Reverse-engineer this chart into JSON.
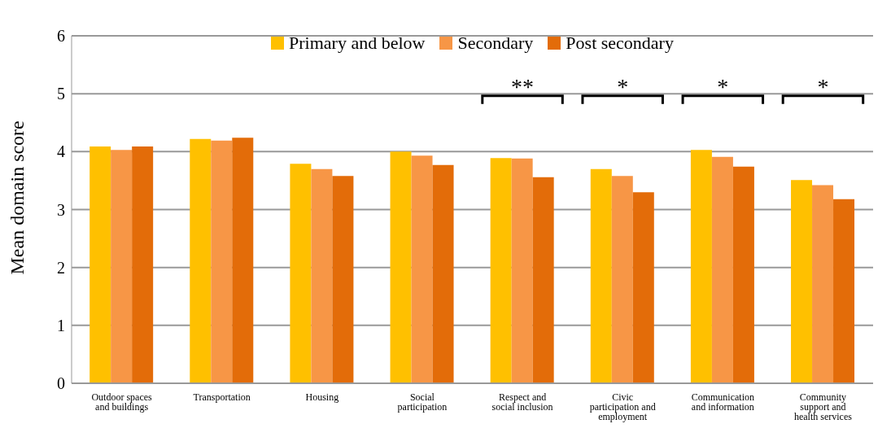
{
  "chart_data": {
    "type": "bar",
    "ylabel": "Mean domain score",
    "categories": [
      "Outdoor spaces and buildings",
      "Transportation",
      "Housing",
      "Social participation",
      "Respect and social inclusion",
      "Civic participation and employment",
      "Communication and information",
      "Community support and health services"
    ],
    "series": [
      {
        "name": "Primary and below",
        "color": "#ffc000",
        "values": [
          4.09,
          4.22,
          3.79,
          4.0,
          3.89,
          3.7,
          4.03,
          3.51
        ]
      },
      {
        "name": "Secondary",
        "color": "#f79646",
        "values": [
          4.03,
          4.19,
          3.7,
          3.93,
          3.88,
          3.58,
          3.91,
          3.42
        ]
      },
      {
        "name": "Post secondary",
        "color": "#e36c09",
        "values": [
          4.09,
          4.24,
          3.58,
          3.77,
          3.56,
          3.3,
          3.74,
          3.18
        ]
      }
    ],
    "ylim": [
      0,
      6
    ],
    "yticks": [
      0,
      1,
      2,
      3,
      4,
      5,
      6
    ],
    "grid": "y",
    "legend": "top",
    "annotations": [
      "**",
      "*",
      "*",
      "*"
    ]
  }
}
